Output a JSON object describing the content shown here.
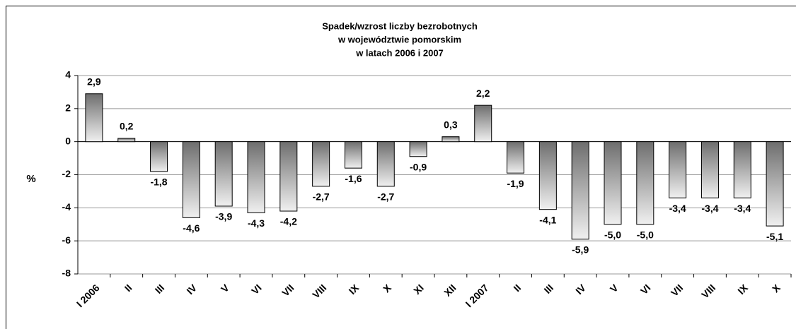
{
  "chart_data": {
    "type": "bar",
    "title": [
      "Spadek/wzrost liczby bezrobotnych",
      "w województwie pomorskim",
      "w latach 2006  i  2007"
    ],
    "y_label": "%",
    "categories": [
      "I 2006",
      "II",
      "III",
      "IV",
      "V",
      "VI",
      "VII",
      "VIII",
      "IX",
      "X",
      "XI",
      "XII",
      "I 2007",
      "II",
      "III",
      "IV",
      "V",
      "VI",
      "VII",
      "VIII",
      "IX",
      "X"
    ],
    "values": [
      2.9,
      0.2,
      -1.8,
      -4.6,
      -3.9,
      -4.3,
      -4.2,
      -2.7,
      -1.6,
      -2.7,
      -0.9,
      0.3,
      2.2,
      -1.9,
      -4.1,
      -5.9,
      -5.0,
      -5.0,
      -3.4,
      -3.4,
      -3.4,
      -5.1
    ],
    "value_labels": [
      "2,9",
      "0,2",
      "-1,8",
      "-4,6",
      "-3,9",
      "-4,3",
      "-4,2",
      "-2,7",
      "-1,6",
      "-2,7",
      "-0,9",
      "0,3",
      "2,2",
      "-1,9",
      "-4,1",
      "-5,9",
      "-5,0",
      "-5,0",
      "-3,4",
      "-3,4",
      "-3,4",
      "-5,1"
    ],
    "ylim": [
      -8,
      4
    ],
    "yticks": [
      -8,
      -6,
      -4,
      -2,
      0,
      2,
      4
    ],
    "grid": true
  }
}
